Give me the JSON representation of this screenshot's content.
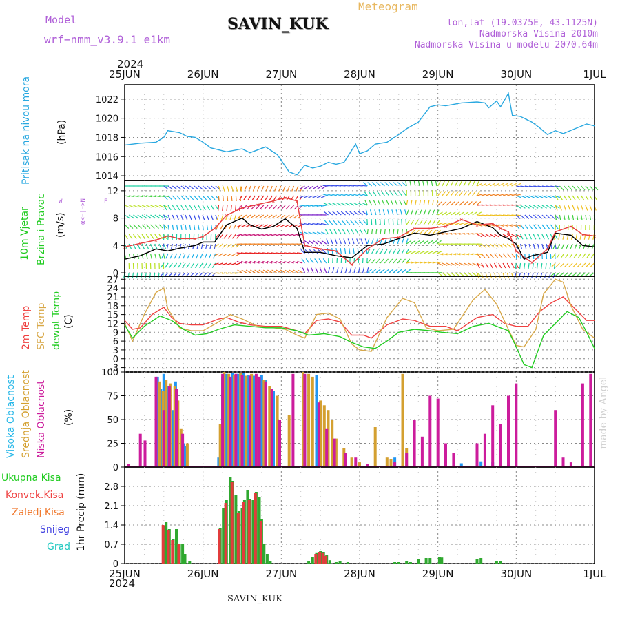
{
  "header": {
    "model_label": "Model",
    "model_name": "wrf−nmm_v3.9.1  e1km",
    "station": "SAVIN_KUK",
    "meteogram": "Meteogram",
    "lonlat": "lon,lat (19.0375E, 43.1125N)",
    "elev": "Nadmorska Visina 2010m",
    "elev_model": "Nadmorska Visina u modelu 2070.64m",
    "year": "2024",
    "footer_station": "SAVIN_KUK",
    "credit": "made by Angel"
  },
  "colors": {
    "pressure": "#29a8e0",
    "temp2m": "#ef4040",
    "sfc": "#d8a848",
    "dew": "#22cc22",
    "high": "#2196f3",
    "mid": "#d4a030",
    "low": "#cc1c9c",
    "precip_total": "#2fa82f",
    "precip_conv": "#e23c3c",
    "grid": "#999999"
  },
  "panels": {
    "pressure": {
      "ylabel": "Pritisak na nivou mora",
      "unit": "(hPa)"
    },
    "wind": {
      "ylabel1": "10m Vjetar",
      "ylabel2": "Brzina i Pravac",
      "unit": "(m/s)",
      "compass_ns": "α<−|−>N",
      "compass_w": "W",
      "compass_e": "E"
    },
    "temp": {
      "ylabel1": "2m Temp",
      "ylabel2": "SFC Temp",
      "ylabel3": "dewpt Temp",
      "unit": "(C)"
    },
    "cloud": {
      "ylabel1": "Visoka Oblacnost",
      "ylabel2": "Srednja Oblacnost",
      "ylabel3": "Niska Oblacnost",
      "unit": "(%)"
    },
    "precip": {
      "legend": [
        "Ukupna Kisa",
        "Konvek.Kisa",
        "Zaledj.Kisa",
        "Snijeg",
        "Grad"
      ],
      "ylabel": "1hr Precip (mm)"
    }
  },
  "chart_data": [
    {
      "type": "line",
      "title": "Pritisak na nivou mora",
      "ylabel": "(hPa)",
      "x_ticks": [
        "25JUN",
        "26JUN",
        "27JUN",
        "28JUN",
        "29JUN",
        "30JUN",
        "1JUL"
      ],
      "ylim": [
        1013.5,
        1023.5
      ],
      "y_ticks": [
        1014,
        1016,
        1018,
        1020,
        1022
      ],
      "grid": true,
      "series": [
        {
          "color": "#29a8e0",
          "x_days": [
            0,
            0.2,
            0.4,
            0.5,
            0.55,
            0.7,
            0.8,
            0.9,
            1.0,
            1.1,
            1.3,
            1.5,
            1.6,
            1.8,
            1.95,
            2.0,
            2.1,
            2.2,
            2.3,
            2.4,
            2.5,
            2.6,
            2.7,
            2.8,
            2.95,
            3.0,
            3.1,
            3.2,
            3.35,
            3.5,
            3.6,
            3.75,
            3.9,
            4.0,
            4.1,
            4.3,
            4.5,
            4.6,
            4.65,
            4.75,
            4.8,
            4.9,
            4.95,
            5.05,
            5.2,
            5.3,
            5.4,
            5.5,
            5.6,
            5.75,
            5.9,
            6.0
          ],
          "values": [
            1017.2,
            1017.4,
            1017.5,
            1018.0,
            1018.7,
            1018.5,
            1018.1,
            1018.0,
            1017.5,
            1016.9,
            1016.5,
            1016.8,
            1016.4,
            1017.0,
            1016.2,
            1015.6,
            1014.4,
            1014.1,
            1015.1,
            1014.8,
            1015.0,
            1015.4,
            1015.2,
            1015.4,
            1017.3,
            1016.3,
            1016.6,
            1017.3,
            1017.5,
            1018.3,
            1018.9,
            1019.6,
            1021.2,
            1021.4,
            1021.3,
            1021.6,
            1021.7,
            1021.6,
            1021.1,
            1021.8,
            1021.2,
            1022.6,
            1020.3,
            1020.2,
            1019.6,
            1019.0,
            1018.3,
            1018.7,
            1018.4,
            1018.9,
            1019.4,
            1019.2
          ]
        }
      ]
    },
    {
      "type": "line",
      "title": "10m Vjetar Brzina i Pravac",
      "ylabel": "(m/s)",
      "ylim": [
        -0.5,
        13.5
      ],
      "y_ticks": [
        0,
        4,
        8,
        12
      ],
      "grid": true,
      "series": [
        {
          "color": "#000000",
          "x_days": [
            0,
            0.2,
            0.4,
            0.55,
            0.7,
            0.9,
            1.0,
            1.15,
            1.3,
            1.5,
            1.6,
            1.75,
            1.9,
            2.05,
            2.2,
            2.3,
            2.5,
            2.7,
            2.9,
            3.1,
            3.3,
            3.5,
            3.7,
            3.9,
            4.1,
            4.3,
            4.5,
            4.7,
            4.8,
            4.9,
            5.0,
            5.1,
            5.2,
            5.4,
            5.5,
            5.7,
            5.85,
            6.0
          ],
          "values": [
            2.0,
            2.5,
            3.5,
            3.2,
            3.6,
            4.0,
            4.5,
            4.5,
            7.0,
            8.0,
            7.0,
            6.4,
            6.8,
            7.9,
            6.5,
            3.0,
            3.0,
            2.5,
            2.2,
            4.0,
            4.2,
            5.0,
            5.8,
            5.5,
            6.0,
            6.5,
            7.5,
            6.6,
            5.5,
            5.0,
            4.2,
            2.0,
            2.5,
            3.0,
            5.8,
            5.5,
            4.0,
            3.8
          ]
        },
        {
          "color": "#e84040",
          "x_days": [
            0,
            0.2,
            0.4,
            0.55,
            0.7,
            0.9,
            1.0,
            1.15,
            1.3,
            1.5,
            1.7,
            1.9,
            2.05,
            2.2,
            2.3,
            2.5,
            2.7,
            2.9,
            3.1,
            3.3,
            3.5,
            3.7,
            3.9,
            4.1,
            4.3,
            4.5,
            4.7,
            4.8,
            4.9,
            5.0,
            5.1,
            5.2,
            5.4,
            5.5,
            5.7,
            5.85,
            6.0
          ],
          "values": [
            3.8,
            4.3,
            4.8,
            5.4,
            5.0,
            5.0,
            5.3,
            6.5,
            8.4,
            9.5,
            10.0,
            10.5,
            11.0,
            10.5,
            4.0,
            3.5,
            3.2,
            1.2,
            3.5,
            5.0,
            5.2,
            6.5,
            6.5,
            6.8,
            7.8,
            7.0,
            7.2,
            6.5,
            6.0,
            3.2,
            2.3,
            1.5,
            3.5,
            6.0,
            6.8,
            5.6,
            5.4
          ]
        }
      ]
    },
    {
      "type": "line",
      "title": "2m Temp / SFC Temp / dewpt Temp",
      "ylabel": "(C)",
      "ylim": [
        -4.5,
        28
      ],
      "y_ticks": [
        -3,
        0,
        3,
        6,
        9,
        12,
        15,
        18,
        21,
        24,
        27
      ],
      "grid": true,
      "series": [
        {
          "name": "2m Temp",
          "color": "#ef4040",
          "x_days": [
            0,
            0.1,
            0.2,
            0.35,
            0.5,
            0.6,
            0.7,
            0.85,
            1.0,
            1.2,
            1.3,
            1.45,
            1.6,
            1.8,
            2.0,
            2.2,
            2.3,
            2.45,
            2.6,
            2.75,
            2.9,
            3.05,
            3.15,
            3.35,
            3.55,
            3.7,
            3.9,
            4.1,
            4.25,
            4.5,
            4.7,
            4.85,
            5.0,
            5.15,
            5.3,
            5.45,
            5.6,
            5.75,
            5.9,
            6.0
          ],
          "values": [
            13,
            10,
            10.5,
            15,
            17.5,
            14,
            12,
            11.5,
            11.5,
            13.5,
            14,
            12.5,
            11.5,
            11,
            11,
            9.5,
            8.5,
            13,
            13.5,
            12.5,
            8,
            8,
            7,
            11.5,
            13.5,
            13,
            11,
            11,
            9.5,
            14,
            15,
            12,
            11,
            11,
            16,
            19,
            21,
            17,
            13,
            13
          ]
        },
        {
          "name": "SFC Temp",
          "color": "#d8a848",
          "x_days": [
            0,
            0.1,
            0.25,
            0.4,
            0.5,
            0.55,
            0.7,
            0.85,
            1.0,
            1.2,
            1.35,
            1.5,
            1.7,
            1.9,
            2.05,
            2.2,
            2.3,
            2.45,
            2.6,
            2.75,
            2.9,
            3.0,
            3.15,
            3.35,
            3.55,
            3.7,
            3.85,
            4.0,
            4.2,
            4.45,
            4.6,
            4.75,
            4.9,
            5.0,
            5.1,
            5.25,
            5.35,
            5.5,
            5.6,
            5.7,
            5.85,
            6.0
          ],
          "values": [
            12,
            6,
            15,
            22.5,
            24,
            17,
            10.5,
            9.5,
            9.5,
            12.5,
            15,
            13.5,
            11,
            10.5,
            10,
            8,
            7,
            15,
            15.5,
            13.5,
            5,
            3,
            2.5,
            14,
            20.5,
            19,
            10.5,
            9.5,
            10,
            20,
            23.5,
            18.5,
            10,
            4.5,
            4,
            10,
            22,
            27,
            26,
            18,
            10,
            7
          ]
        },
        {
          "name": "dewpt Temp",
          "color": "#22cc22",
          "x_days": [
            0,
            0.1,
            0.25,
            0.45,
            0.6,
            0.75,
            0.9,
            1.05,
            1.2,
            1.4,
            1.6,
            1.8,
            2.0,
            2.2,
            2.35,
            2.55,
            2.75,
            2.9,
            3.05,
            3.2,
            3.35,
            3.5,
            3.7,
            3.9,
            4.05,
            4.25,
            4.45,
            4.65,
            4.8,
            4.9,
            5.0,
            5.1,
            5.2,
            5.35,
            5.5,
            5.65,
            5.8,
            5.9,
            6.0
          ],
          "values": [
            11.5,
            7,
            11,
            14.5,
            13,
            10,
            8,
            8.5,
            10,
            11.5,
            11,
            10.5,
            10.5,
            9.5,
            8,
            8.5,
            7.5,
            5.5,
            4,
            3.5,
            6,
            9,
            10,
            9.5,
            9,
            8.5,
            11,
            12,
            10.5,
            9.5,
            4,
            -2,
            -3,
            8,
            12,
            16,
            14,
            9,
            3.5
          ]
        }
      ]
    },
    {
      "type": "bar",
      "title": "Visoka / Srednja / Niska Oblacnost",
      "ylabel": "(%)",
      "ylim": [
        0,
        100
      ],
      "y_ticks": [
        0,
        25,
        50,
        75,
        100
      ],
      "grid": true,
      "series": [
        {
          "name": "Visoka Oblacnost",
          "color": "#2196f3",
          "x_days": [
            0.42,
            0.46,
            0.5,
            0.55,
            0.62,
            0.65,
            0.75,
            0.78,
            1.2,
            1.25,
            1.3,
            1.38,
            1.45,
            1.52,
            1.58,
            1.65,
            1.75,
            1.8,
            1.9,
            2.3,
            2.45,
            3.45,
            4.1,
            4.3,
            4.55,
            4.7
          ],
          "values": [
            95,
            82,
            98,
            85,
            60,
            90,
            25,
            22,
            10,
            95,
            98,
            99,
            98,
            99,
            97,
            96,
            97,
            92,
            80,
            97,
            97,
            10,
            5,
            4,
            6,
            5
          ]
        },
        {
          "name": "Srednja Oblacnost",
          "color": "#d4a030",
          "x_days": [
            0.44,
            0.49,
            0.53,
            0.58,
            0.64,
            0.68,
            0.72,
            0.8,
            1.22,
            1.27,
            1.33,
            1.4,
            1.48,
            1.55,
            1.62,
            1.7,
            1.78,
            1.85,
            1.95,
            2.1,
            2.28,
            2.35,
            2.4,
            2.5,
            2.55,
            2.6,
            2.65,
            2.7,
            2.8,
            2.9,
            3.0,
            3.2,
            3.35,
            3.4,
            3.55,
            3.6
          ],
          "values": [
            90,
            80,
            92,
            88,
            85,
            70,
            40,
            25,
            45,
            100,
            98,
            97,
            99,
            96,
            98,
            95,
            92,
            85,
            75,
            55,
            100,
            98,
            95,
            70,
            65,
            60,
            50,
            30,
            20,
            10,
            5,
            42,
            10,
            8,
            98,
            20
          ]
        },
        {
          "name": "Niska Oblacnost",
          "color": "#cc1c9c",
          "x_days": [
            0.05,
            0.2,
            0.26,
            0.4,
            0.5,
            0.57,
            0.66,
            0.74,
            1.25,
            1.35,
            1.42,
            1.5,
            1.6,
            1.68,
            1.72,
            1.8,
            1.88,
            1.98,
            2.15,
            2.3,
            2.48,
            2.58,
            2.68,
            2.82,
            2.95,
            3.1,
            3.45,
            3.6,
            3.7,
            3.8,
            3.9,
            4.0,
            4.1,
            4.2,
            4.5,
            4.6,
            4.7,
            4.8,
            4.9,
            5.0,
            5.5,
            5.6,
            5.7,
            5.85,
            5.95
          ],
          "values": [
            3,
            35,
            28,
            95,
            60,
            85,
            82,
            35,
            98,
            95,
            98,
            97,
            96,
            98,
            95,
            90,
            82,
            50,
            98,
            98,
            68,
            40,
            30,
            15,
            10,
            3,
            5,
            15,
            50,
            32,
            75,
            72,
            25,
            15,
            25,
            35,
            65,
            45,
            75,
            88,
            60,
            10,
            5,
            88,
            98
          ]
        }
      ]
    },
    {
      "type": "bar",
      "title": "1hr Precip",
      "ylabel": "1hr Precip (mm)",
      "ylim": [
        0,
        3.5
      ],
      "y_ticks": [
        0,
        0.7,
        1.4,
        2.1,
        2.8
      ],
      "grid": true,
      "series": [
        {
          "name": "Ukupna Kisa",
          "color": "#2fa82f",
          "x_days": [
            0.5,
            0.53,
            0.57,
            0.62,
            0.66,
            0.7,
            0.74,
            0.77,
            0.83,
            1.22,
            1.26,
            1.3,
            1.35,
            1.38,
            1.42,
            1.46,
            1.5,
            1.53,
            1.57,
            1.6,
            1.64,
            1.68,
            1.72,
            1.75,
            1.78,
            1.82,
            1.86,
            2.35,
            2.4,
            2.45,
            2.5,
            2.54,
            2.58,
            2.62,
            2.7,
            2.75,
            2.85,
            3.45,
            3.5,
            3.6,
            3.65,
            3.75,
            3.85,
            3.9,
            4.02,
            4.05,
            4.5,
            4.55,
            4.75,
            4.8
          ],
          "values": [
            1.35,
            1.5,
            1.25,
            0.9,
            1.25,
            0.7,
            0.7,
            0.35,
            0.1,
            1.3,
            2.0,
            2.3,
            3.15,
            3.0,
            2.5,
            1.9,
            2.0,
            2.3,
            2.65,
            2.35,
            2.3,
            2.6,
            2.4,
            1.6,
            0.7,
            0.35,
            0.1,
            0.1,
            0.25,
            0.38,
            0.45,
            0.4,
            0.3,
            0.12,
            0.05,
            0.1,
            0.05,
            0.05,
            0.05,
            0.1,
            0.05,
            0.15,
            0.2,
            0.2,
            0.25,
            0.22,
            0.15,
            0.2,
            0.1,
            0.1
          ]
        },
        {
          "name": "Konvek.Kisa",
          "color": "#e23c3c",
          "x_days": [
            0.49,
            0.56,
            0.61,
            0.69,
            1.21,
            1.29,
            1.37,
            1.45,
            1.52,
            1.59,
            1.67,
            1.74,
            2.44,
            2.49,
            2.53,
            2.57
          ],
          "values": [
            1.4,
            1.2,
            0.85,
            0.7,
            1.25,
            2.2,
            2.95,
            1.85,
            2.25,
            2.3,
            2.55,
            1.55,
            0.35,
            0.42,
            0.38,
            0.28
          ]
        }
      ]
    }
  ]
}
